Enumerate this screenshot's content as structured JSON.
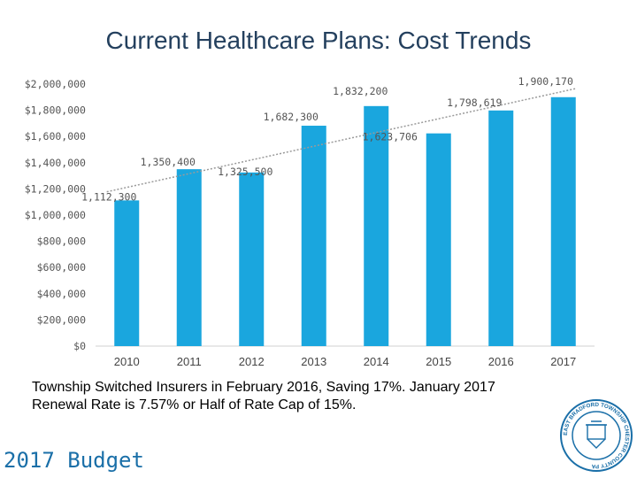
{
  "page": {
    "title": "Current Healthcare Plans: Cost Trends",
    "note_line1": "Township Switched Insurers in February 2016, Saving 17%. January 2017",
    "note_line2": "Renewal Rate is 7.57% or Half of Rate Cap of 15%.",
    "footer": "2017 Budget",
    "seal_text": "EAST BRADFORD TOWNSHIP CHESTER COUNTY PA"
  },
  "chart_data": {
    "type": "bar",
    "categories": [
      "2010",
      "2011",
      "2012",
      "2013",
      "2014",
      "2015",
      "2016",
      "2017"
    ],
    "values": [
      1112300,
      1350400,
      1325500,
      1682300,
      1832200,
      1623706,
      1798619,
      1900170
    ],
    "data_labels": [
      "1,112,300",
      "1,350,400",
      "1,325,500",
      "1,682,300",
      "1,832,200",
      "1,623,706",
      "1,798,619",
      "1,900,170"
    ],
    "y_ticks": [
      0,
      200000,
      400000,
      600000,
      800000,
      1000000,
      1200000,
      1400000,
      1600000,
      1800000,
      2000000
    ],
    "y_tick_labels": [
      "$0",
      "$200,000",
      "$400,000",
      "$600,000",
      "$800,000",
      "$1,000,000",
      "$1,200,000",
      "$1,400,000",
      "$1,600,000",
      "$1,800,000",
      "$2,000,000"
    ],
    "ylim": [
      0,
      2000000
    ],
    "trendline": "linear",
    "grid": false,
    "bar_color": "#1aa6de",
    "trend_color": "#9a9a9a"
  }
}
